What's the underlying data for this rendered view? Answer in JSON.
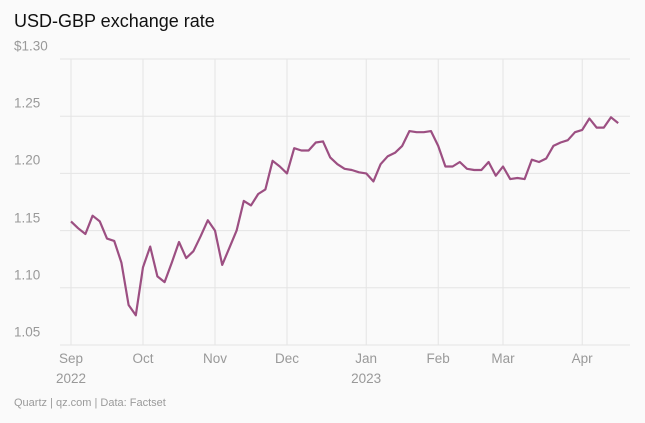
{
  "chart_data": {
    "type": "line",
    "title": "USD-GBP exchange rate",
    "source": "Quartz | qz.com | Data: Factset",
    "categories": [
      "Sep\n2022",
      null,
      null,
      null,
      null,
      null,
      null,
      null,
      null,
      null,
      "Oct",
      null,
      null,
      null,
      null,
      null,
      null,
      null,
      null,
      null,
      "Nov",
      null,
      null,
      null,
      null,
      null,
      null,
      null,
      null,
      null,
      "Dec",
      null,
      null,
      null,
      null,
      null,
      null,
      null,
      null,
      null,
      null,
      "Jan\n2023",
      null,
      null,
      null,
      null,
      null,
      null,
      null,
      null,
      null,
      "Feb",
      null,
      null,
      null,
      null,
      null,
      null,
      null,
      null,
      "Mar",
      null,
      null,
      null,
      null,
      null,
      null,
      null,
      null,
      null,
      null,
      "Apr",
      null,
      null,
      null,
      null,
      null
    ],
    "series": [
      {
        "name": "USD-GBP",
        "color": "#9c4f82",
        "values": [
          1.158,
          1.152,
          1.147,
          1.163,
          1.158,
          1.143,
          1.141,
          1.122,
          1.085,
          1.076,
          1.118,
          1.136,
          1.11,
          1.105,
          1.122,
          1.14,
          1.126,
          1.132,
          1.145,
          1.159,
          1.15,
          1.12,
          1.135,
          1.15,
          1.176,
          1.172,
          1.182,
          1.186,
          1.211,
          1.206,
          1.2,
          1.222,
          1.22,
          1.22,
          1.227,
          1.228,
          1.214,
          1.208,
          1.204,
          1.203,
          1.201,
          1.2,
          1.193,
          1.208,
          1.215,
          1.218,
          1.224,
          1.237,
          1.236,
          1.236,
          1.237,
          1.224,
          1.206,
          1.206,
          1.21,
          1.204,
          1.203,
          1.203,
          1.21,
          1.198,
          1.206,
          1.195,
          1.196,
          1.195,
          1.212,
          1.21,
          1.213,
          1.224,
          1.227,
          1.229,
          1.236,
          1.238,
          1.248,
          1.24,
          1.24,
          1.249,
          1.244
        ]
      }
    ],
    "ylim": [
      1.05,
      1.3
    ],
    "yticks": [
      1.05,
      {
        "value": 1.1,
        "label": "1.10"
      },
      1.15,
      {
        "value": 1.2,
        "label": "1.20"
      },
      1.25,
      {
        "value": 1.3,
        "label": "$1.30"
      }
    ],
    "grid": true
  }
}
